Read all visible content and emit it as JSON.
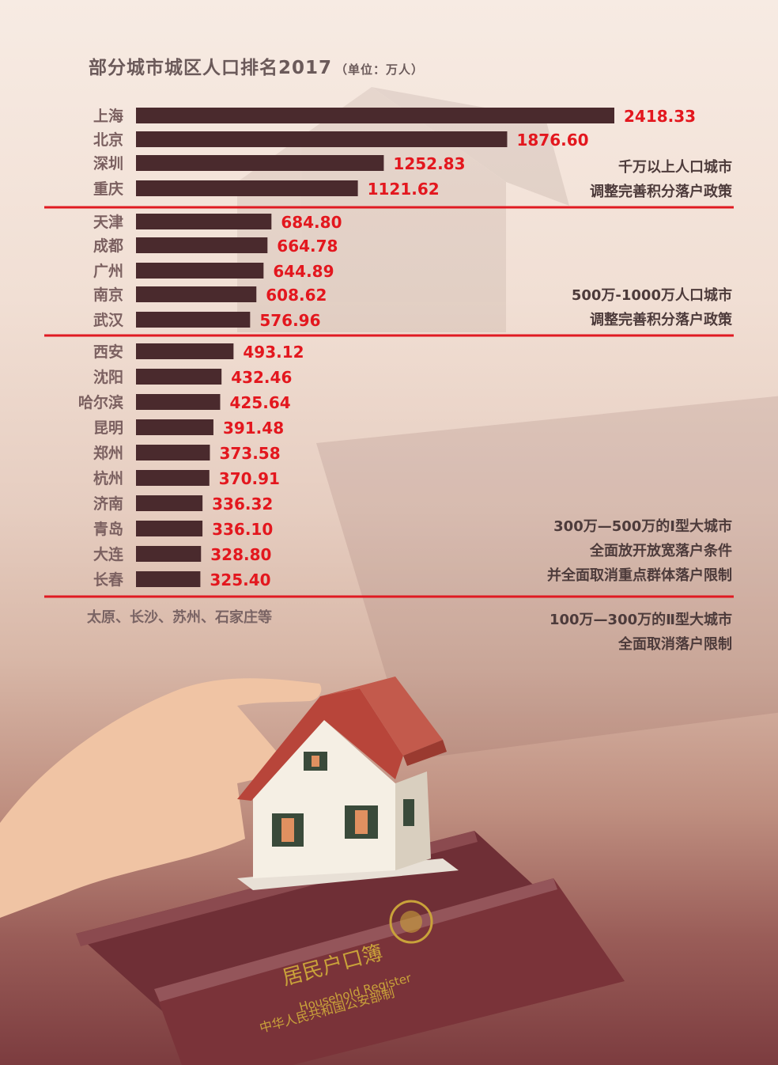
{
  "title": "部分城市城区人口排名2017",
  "unit": "（单位：万人）",
  "colors": {
    "bar": "#4a2a2d",
    "value": "#e3171e",
    "label": "#7b6060",
    "divider": "#e01a22",
    "note": "#4d3b3b"
  },
  "chart_data": {
    "type": "bar",
    "orientation": "horizontal",
    "title": "部分城市城区人口排名2017",
    "unit": "（单位：万人）",
    "categories": [
      "上海",
      "北京",
      "深圳",
      "重庆",
      "天津",
      "成都",
      "广州",
      "南京",
      "武汉",
      "西安",
      "沈阳",
      "哈尔滨",
      "昆明",
      "郑州",
      "杭州",
      "济南",
      "青岛",
      "大连",
      "长春"
    ],
    "values": [
      2418.33,
      1876.6,
      1252.83,
      1121.62,
      684.8,
      664.78,
      644.89,
      608.62,
      576.96,
      493.12,
      432.46,
      425.64,
      391.48,
      373.58,
      370.91,
      336.32,
      336.1,
      328.8,
      325.4
    ],
    "value_labels": [
      "2418.33",
      "1876.60",
      "1252.83",
      "1121.62",
      "684.80",
      "664.78",
      "644.89",
      "608.62",
      "576.96",
      "493.12",
      "432.46",
      "425.64",
      "391.48",
      "373.58",
      "370.91",
      "336.32",
      "336.10",
      "328.80",
      "325.40"
    ],
    "xlim": [
      0,
      2418.33
    ],
    "grid": false,
    "legend": "none"
  },
  "groups": [
    {
      "lines": [
        "千万以上人口城市",
        "调整完善积分落户政策"
      ]
    },
    {
      "lines": [
        "500万-1000万人口城市",
        "调整完善积分落户政策"
      ]
    },
    {
      "lines": [
        "300万—500万的Ⅰ型大城市",
        "全面放开放宽落户条件",
        "并全面取消重点群体落户限制"
      ]
    },
    {
      "lines": [
        "100万—300万的Ⅱ型大城市",
        "全面取消落户限制"
      ]
    }
  ],
  "others_text": "太原、长沙、苏州、石家庄等",
  "background": {
    "cover_title": "居民户口簿",
    "cover_english": "Household Register",
    "cover_issuer": "中华人民共和国公安部制"
  }
}
